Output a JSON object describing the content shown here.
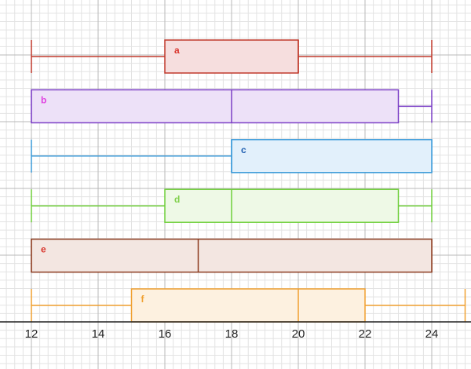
{
  "chart_data": {
    "type": "boxplot",
    "title": "",
    "xlabel": "",
    "ylabel": "",
    "xlim": [
      11,
      25
    ],
    "x_ticks": [
      12,
      14,
      16,
      18,
      20,
      22,
      24
    ],
    "x_tick_labels": [
      "12",
      "14",
      "16",
      "18",
      "20",
      "22",
      "24"
    ],
    "grid": true,
    "series": [
      {
        "name": "a",
        "min": 12,
        "q1": 16,
        "median": 20,
        "q3": 20,
        "max": 24,
        "color": "#c0392b",
        "fill": "#f6dede",
        "label_color": "#d9342b"
      },
      {
        "name": "b",
        "min": 12,
        "q1": 12,
        "median": 18,
        "q3": 23,
        "max": 24,
        "color": "#7b3fc6",
        "fill": "#ede1f8",
        "label_color": "#e040e0"
      },
      {
        "name": "c",
        "min": 12,
        "q1": 18,
        "median": 18,
        "q3": 24,
        "max": 24,
        "color": "#3a9ad9",
        "fill": "#e2f0fb",
        "label_color": "#1f5fb0"
      },
      {
        "name": "d",
        "min": 12,
        "q1": 16,
        "median": 18,
        "q3": 23,
        "max": 24,
        "color": "#6fcf3a",
        "fill": "#eef9e6",
        "label_color": "#7fd04a"
      },
      {
        "name": "e",
        "min": 12,
        "q1": 12,
        "median": 17,
        "q3": 24,
        "max": 24,
        "color": "#8b3a1e",
        "fill": "#f3e6e1",
        "label_color": "#d9342b"
      },
      {
        "name": "f",
        "min": 12,
        "q1": 15,
        "median": 20,
        "q3": 22,
        "max": 25,
        "color": "#f0a030",
        "fill": "#fdf1e0",
        "label_color": "#f0a030"
      }
    ]
  }
}
